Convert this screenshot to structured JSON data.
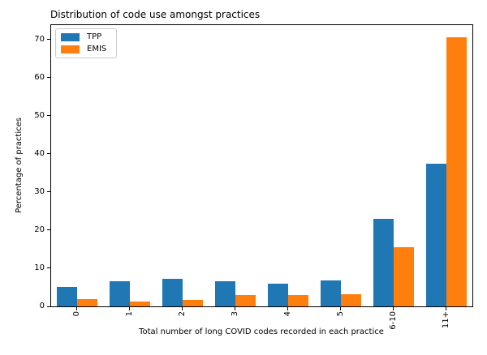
{
  "chart_data": {
    "type": "bar",
    "title": "Distribution of code use amongst practices",
    "xlabel": "Total number of long COVID codes recorded in each practice",
    "ylabel": "Percentage of practices",
    "categories": [
      "0",
      "1",
      "2",
      "3",
      "4",
      "5",
      "6-10",
      "11+"
    ],
    "series": [
      {
        "name": "TPP",
        "color": "#1f77b4",
        "values": [
          5.2,
          6.6,
          7.2,
          6.6,
          5.9,
          6.8,
          23.0,
          37.4
        ]
      },
      {
        "name": "EMIS",
        "color": "#ff7f0e",
        "values": [
          2.0,
          1.2,
          1.8,
          2.9,
          2.9,
          3.1,
          15.6,
          70.6
        ]
      }
    ],
    "yticks": [
      0,
      10,
      20,
      30,
      40,
      50,
      60,
      70
    ],
    "ylim": [
      0,
      74
    ],
    "legend_position": "upper left",
    "grid": false,
    "axis_color": "#000000",
    "background_color": "#ffffff"
  }
}
